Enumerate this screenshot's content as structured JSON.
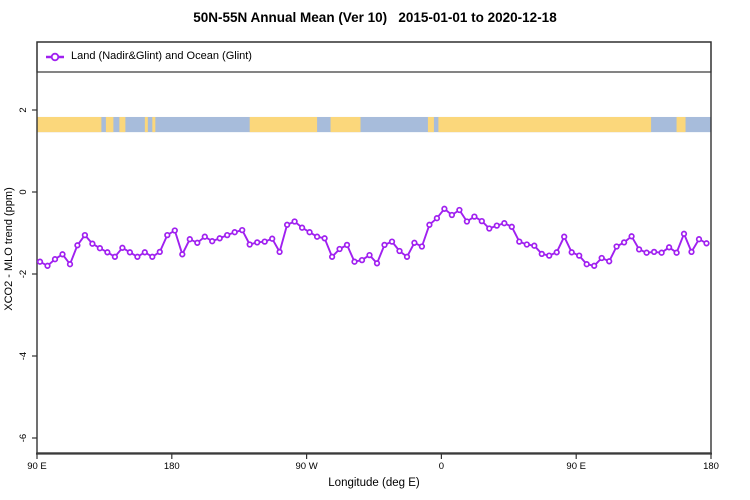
{
  "title": "50N-55N Annual Mean (Ver 10)   2015-01-01 to 2020-12-18",
  "legend": {
    "label": "Land (Nadir&Glint) and Ocean (Glint)"
  },
  "colors": {
    "series_purple": "#A020F0",
    "land_yellow": "#FBD77B",
    "ocean_blue": "#A7BCDB",
    "axis": "#333333"
  },
  "chart_data": {
    "type": "line",
    "title": "50N-55N Annual Mean (Ver 10)   2015-01-01 to 2020-12-18",
    "xlabel": "Longitude (deg E)",
    "ylabel": "XCO2 - MLO trend (ppm)",
    "grid": false,
    "legend_position": "top-left",
    "xlim_deg_east_of_90E": [
      0,
      450
    ],
    "ylim": [
      -6.4,
      3.6
    ],
    "x_ticks": [
      {
        "deg": 0,
        "label": "90 E"
      },
      {
        "deg": 90,
        "label": "180"
      },
      {
        "deg": 180,
        "label": "90 W"
      },
      {
        "deg": 270,
        "label": "0"
      },
      {
        "deg": 360,
        "label": "90 E"
      },
      {
        "deg": 450,
        "label": "180"
      }
    ],
    "y_ticks": [
      {
        "value": 2,
        "label": "2"
      },
      {
        "value": 0,
        "label": "0"
      },
      {
        "value": -2,
        "label": "-2"
      },
      {
        "value": -4,
        "label": "-4"
      },
      {
        "value": -6,
        "label": "-6"
      }
    ],
    "map_strip": {
      "description": "land/ocean mask band at 50N-55N plotted across top of axes",
      "value_top": 1.83,
      "value_bottom": 1.46,
      "ocean_color": "#A7BCDB",
      "land_color": "#FBD77B",
      "land_bands_deg": [
        [
          0,
          43
        ],
        [
          46,
          51
        ],
        [
          55,
          59
        ],
        [
          72,
          74
        ],
        [
          77,
          79
        ],
        [
          142,
          187
        ],
        [
          196,
          216
        ],
        [
          261,
          265
        ],
        [
          268,
          410
        ],
        [
          427,
          433
        ]
      ]
    },
    "series": [
      {
        "name": "Land (Nadir&Glint) and Ocean (Glint)",
        "color": "#A020F0",
        "marker": "open-circle",
        "x_deg_east_of_90E": [
          2,
          7,
          12,
          17,
          22,
          27,
          32,
          37,
          42,
          47,
          52,
          57,
          62,
          67,
          72,
          77,
          82,
          87,
          92,
          97,
          102,
          107,
          112,
          117,
          122,
          127,
          132,
          137,
          142,
          147,
          152,
          157,
          162,
          167,
          172,
          177,
          182,
          187,
          192,
          197,
          202,
          207,
          212,
          217,
          222,
          227,
          232,
          237,
          242,
          247,
          252,
          257,
          262,
          267,
          272,
          277,
          282,
          287,
          292,
          297,
          302,
          307,
          312,
          317,
          322,
          327,
          332,
          337,
          342,
          347,
          352,
          357,
          362,
          367,
          372,
          377,
          382,
          387,
          392,
          397,
          402,
          407,
          412,
          417,
          422,
          427,
          432,
          437,
          442,
          447
        ],
        "values_ppm": [
          -1.7,
          -1.8,
          -1.64,
          -1.52,
          -1.76,
          -1.3,
          -1.05,
          -1.26,
          -1.37,
          -1.47,
          -1.58,
          -1.36,
          -1.47,
          -1.58,
          -1.47,
          -1.58,
          -1.46,
          -1.05,
          -0.94,
          -1.52,
          -1.15,
          -1.24,
          -1.09,
          -1.2,
          -1.13,
          -1.05,
          -0.98,
          -0.93,
          -1.28,
          -1.23,
          -1.21,
          -1.14,
          -1.46,
          -0.8,
          -0.72,
          -0.87,
          -0.98,
          -1.09,
          -1.13,
          -1.58,
          -1.39,
          -1.29,
          -1.7,
          -1.66,
          -1.54,
          -1.74,
          -1.29,
          -1.21,
          -1.44,
          -1.58,
          -1.24,
          -1.33,
          -0.8,
          -0.64,
          -0.41,
          -0.56,
          -0.44,
          -0.72,
          -0.6,
          -0.71,
          -0.89,
          -0.82,
          -0.76,
          -0.85,
          -1.21,
          -1.28,
          -1.31,
          -1.51,
          -1.55,
          -1.47,
          -1.09,
          -1.47,
          -1.55,
          -1.76,
          -1.8,
          -1.61,
          -1.69,
          -1.33,
          -1.23,
          -1.08,
          -1.4,
          -1.48,
          -1.46,
          -1.48,
          -1.35,
          -1.48,
          -1.02,
          -1.46,
          -1.15,
          -1.25
        ]
      }
    ]
  }
}
